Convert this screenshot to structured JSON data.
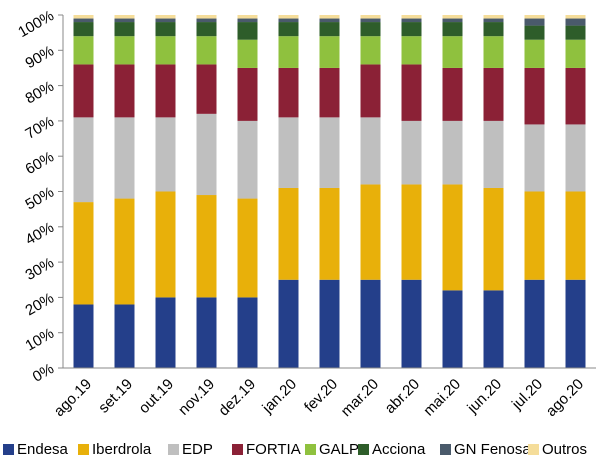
{
  "chart_data": {
    "type": "stacked_bar",
    "categories": [
      "ago.19",
      "set.19",
      "out.19",
      "nov.19",
      "dez.19",
      "jan.20",
      "fev.20",
      "mar.20",
      "abr.20",
      "mai.20",
      "jun.20",
      "jul.20",
      "ago.20"
    ],
    "series": [
      {
        "name": "Endesa",
        "color": "#243f8a",
        "values": [
          18,
          18,
          20,
          20,
          20,
          25,
          25,
          25,
          25,
          22,
          22,
          25,
          25
        ]
      },
      {
        "name": "Iberdrola",
        "color": "#e8b00a",
        "values": [
          29,
          30,
          30,
          29,
          28,
          26,
          26,
          27,
          27,
          30,
          29,
          25,
          25
        ]
      },
      {
        "name": "EDP",
        "color": "#bfbfbf",
        "values": [
          24,
          23,
          21,
          23,
          22,
          20,
          20,
          19,
          18,
          18,
          19,
          19,
          19
        ]
      },
      {
        "name": "FORTIA",
        "color": "#8b2136",
        "values": [
          15,
          15,
          15,
          14,
          15,
          14,
          14,
          15,
          16,
          15,
          15,
          16,
          16
        ]
      },
      {
        "name": "GALP",
        "color": "#8fc13e",
        "values": [
          8,
          8,
          8,
          8,
          8,
          9,
          9,
          8,
          8,
          9,
          9,
          8,
          8
        ]
      },
      {
        "name": "Acciona",
        "color": "#2e5d2a",
        "values": [
          4,
          4,
          4,
          4,
          5,
          4,
          4,
          4,
          4,
          4,
          4,
          4,
          4
        ]
      },
      {
        "name": "GN Fenosa",
        "color": "#4a5a6b",
        "values": [
          1,
          1,
          1,
          1,
          1,
          1,
          1,
          1,
          1,
          1,
          1,
          2,
          2
        ]
      },
      {
        "name": "Outros",
        "color": "#f5dd9a",
        "values": [
          1,
          1,
          1,
          1,
          1,
          1,
          1,
          1,
          1,
          1,
          1,
          1,
          1
        ]
      }
    ],
    "ylim": [
      0,
      100
    ],
    "yticks": [
      {
        "value": 0,
        "label": "0%"
      },
      {
        "value": 10,
        "label": "10%"
      },
      {
        "value": 20,
        "label": "20%"
      },
      {
        "value": 30,
        "label": "30%"
      },
      {
        "value": 40,
        "label": "40%"
      },
      {
        "value": 50,
        "label": "50%"
      },
      {
        "value": 60,
        "label": "60%"
      },
      {
        "value": 70,
        "label": "70%"
      },
      {
        "value": 80,
        "label": "80%"
      },
      {
        "value": 90,
        "label": "90%"
      },
      {
        "value": 100,
        "label": "100%"
      }
    ],
    "legend": "bottom"
  }
}
